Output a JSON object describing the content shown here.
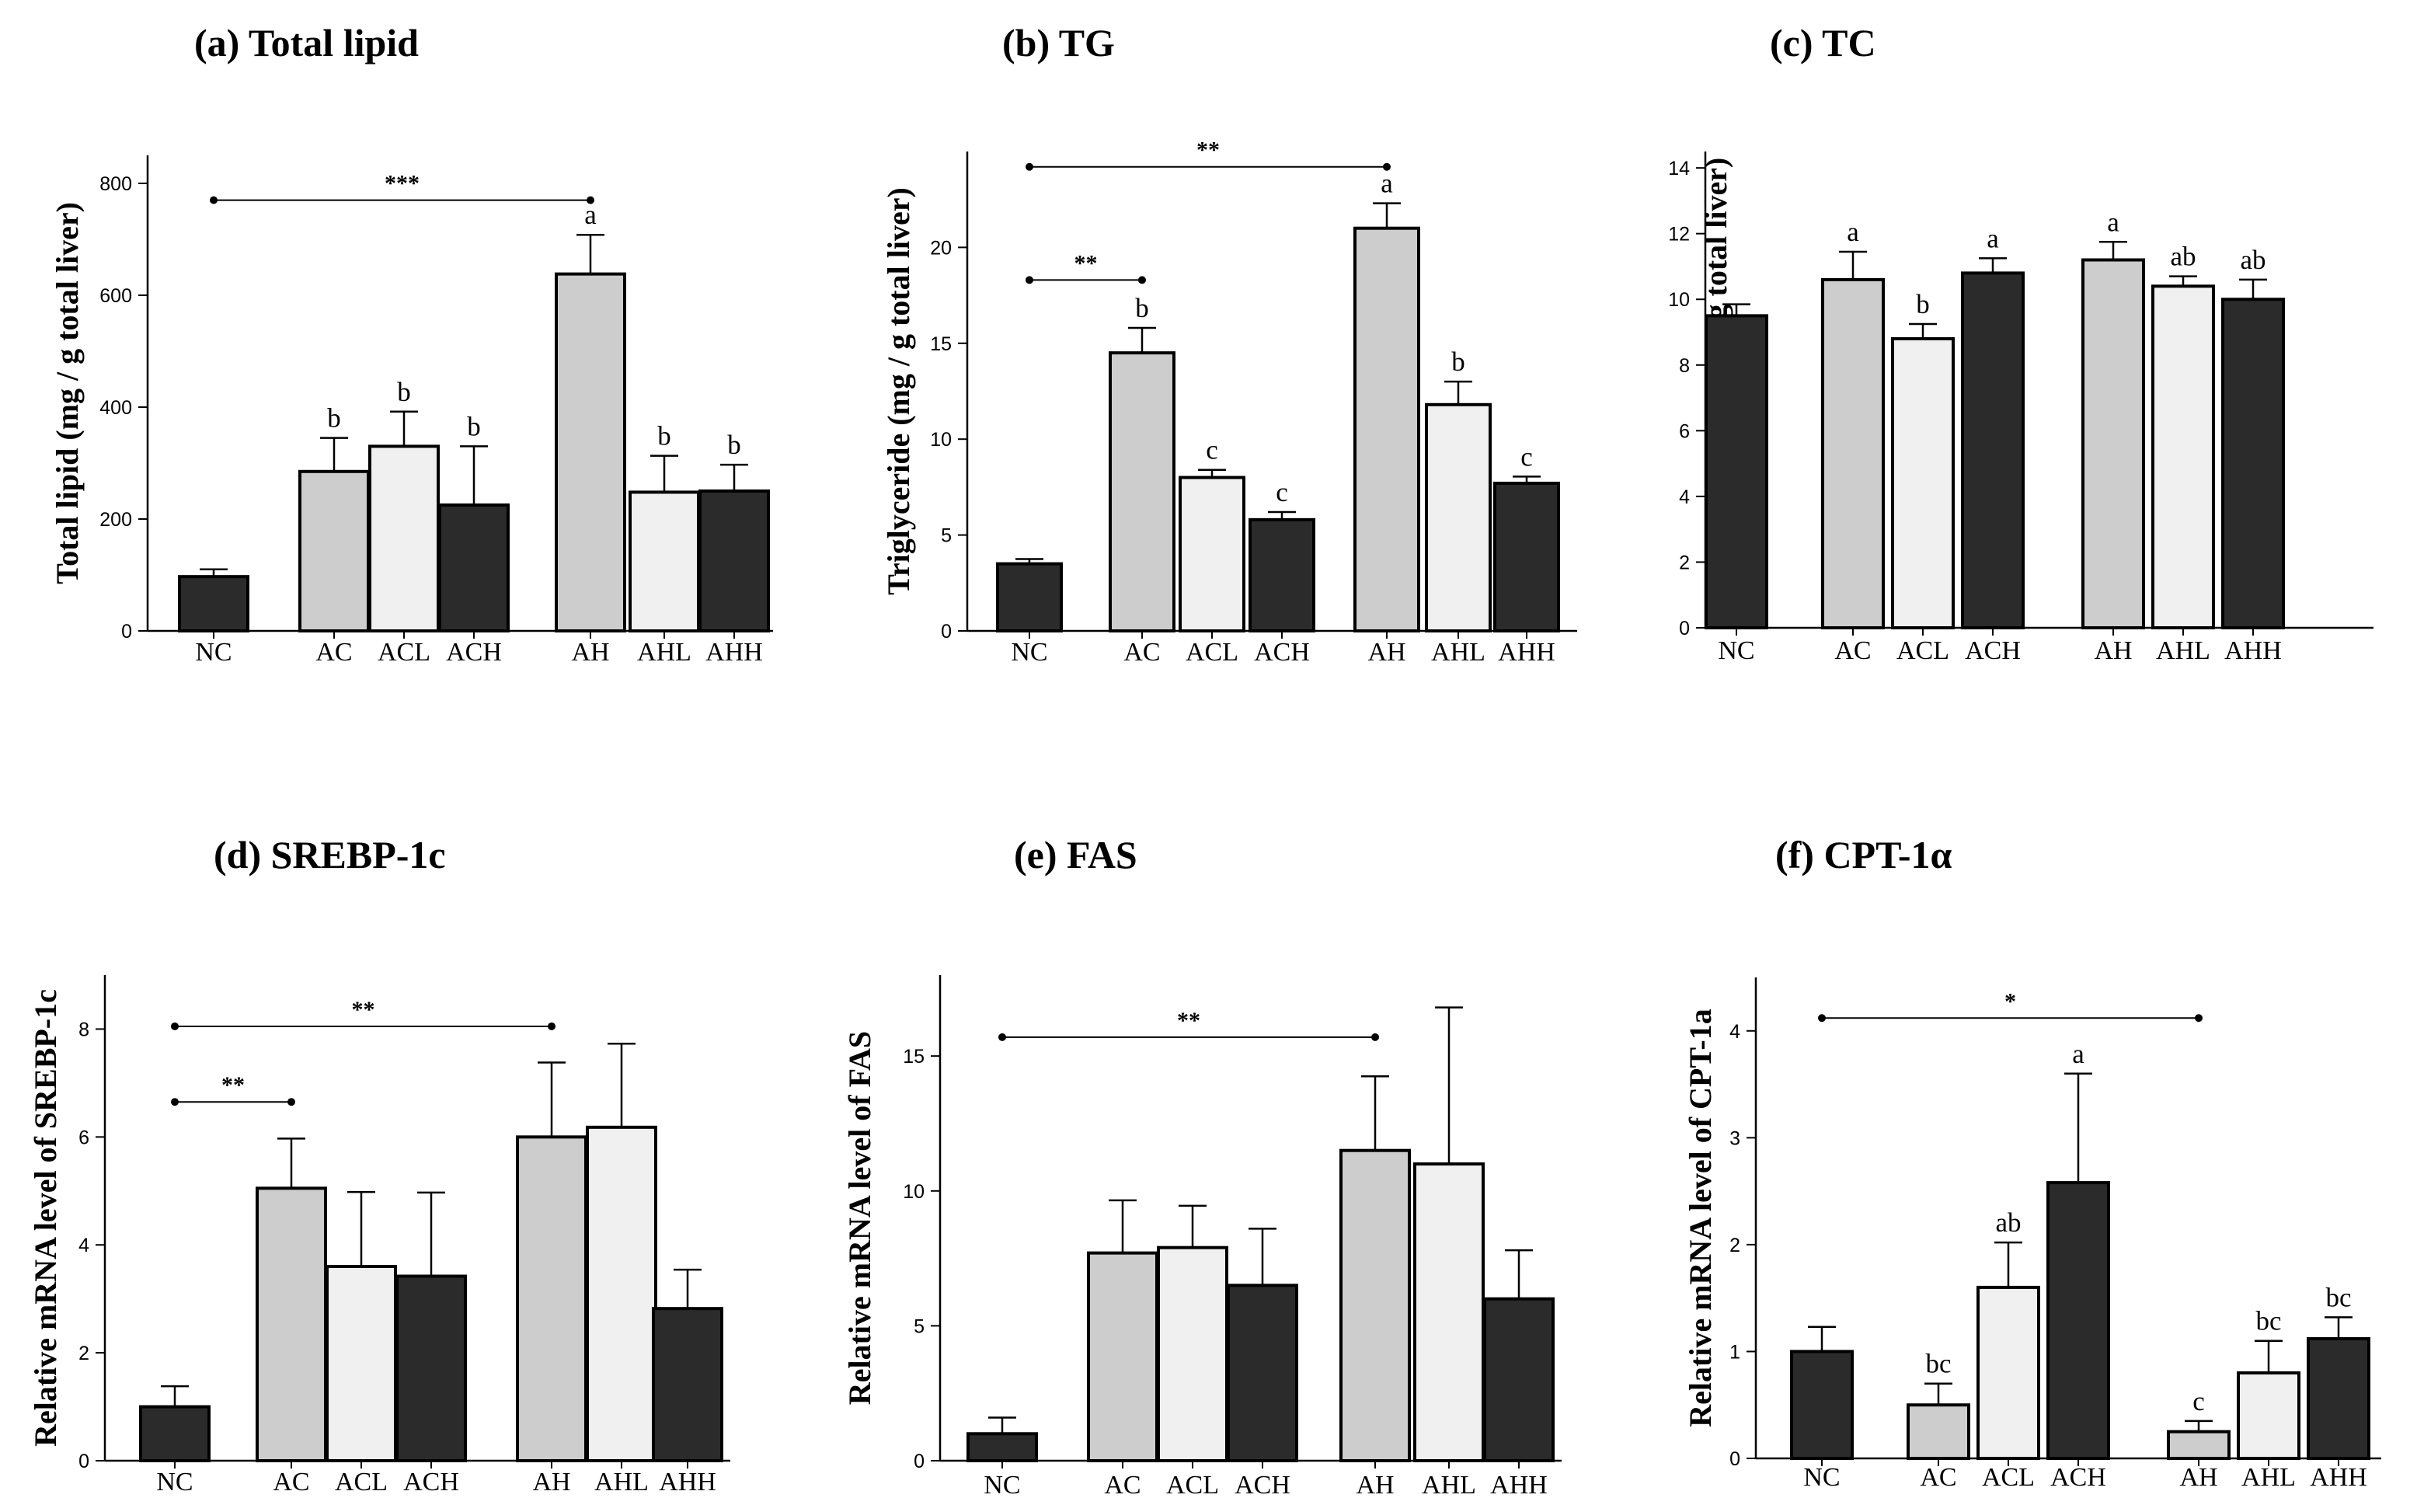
{
  "colors": {
    "dark": "#2b2b2b",
    "mid": "#cdcdcd",
    "light": "#f0f0f0",
    "line": "#000000"
  },
  "chart_data": [
    {
      "type": "bar",
      "title": "(a) Total lipid",
      "ylabel": "Total lipid (mg / g total liver)",
      "ylim": [
        0,
        850
      ],
      "yticks": [
        0,
        200,
        400,
        600,
        800
      ],
      "categories": [
        "NC",
        "AC",
        "ACL",
        "ACH",
        "AH",
        "AHL",
        "AHH"
      ],
      "values": [
        97,
        285,
        330,
        225,
        638,
        248,
        250
      ],
      "errors": [
        13,
        60,
        62,
        105,
        70,
        65,
        47
      ],
      "fills": [
        "dark",
        "mid",
        "light",
        "dark",
        "mid",
        "light",
        "dark"
      ],
      "letters": [
        "",
        "b",
        "b",
        "b",
        "a",
        "b",
        "b"
      ],
      "brackets": [
        {
          "from": 0,
          "to": 4,
          "y": 770,
          "label": "***"
        }
      ]
    },
    {
      "type": "bar",
      "title": "(b) TG",
      "ylabel": "Triglyceride (mg / g total liver)",
      "ylim": [
        0,
        25
      ],
      "yticks": [
        0,
        5,
        10,
        15,
        20
      ],
      "categories": [
        "NC",
        "AC",
        "ACL",
        "ACH",
        "AH",
        "AHL",
        "AHH"
      ],
      "values": [
        3.5,
        14.5,
        8.0,
        5.8,
        21.0,
        11.8,
        7.7
      ],
      "errors": [
        0.25,
        1.3,
        0.4,
        0.4,
        1.3,
        1.2,
        0.35
      ],
      "fills": [
        "dark",
        "mid",
        "light",
        "dark",
        "mid",
        "light",
        "dark"
      ],
      "letters": [
        "",
        "b",
        "c",
        "c",
        "a",
        "b",
        "c"
      ],
      "brackets": [
        {
          "from": 0,
          "to": 4,
          "y": 24.2,
          "label": "**"
        },
        {
          "from": 0,
          "to": 1,
          "y": 18.3,
          "label": "**"
        }
      ]
    },
    {
      "type": "bar",
      "title": "(c) TC",
      "ylabel": "Total cholesterol (mg / g total liver)",
      "ylim": [
        0,
        14.5
      ],
      "yticks": [
        0,
        2,
        4,
        6,
        8,
        10,
        12,
        14
      ],
      "categories": [
        "NC",
        "AC",
        "ACL",
        "ACH",
        "AH",
        "AHL",
        "AHH"
      ],
      "values": [
        9.5,
        10.6,
        8.8,
        10.8,
        11.2,
        10.4,
        10.0
      ],
      "errors": [
        0.35,
        0.85,
        0.45,
        0.45,
        0.55,
        0.3,
        0.6
      ],
      "fills": [
        "dark",
        "mid",
        "light",
        "dark",
        "mid",
        "light",
        "dark"
      ],
      "letters": [
        "",
        "a",
        "b",
        "a",
        "a",
        "ab",
        "ab"
      ],
      "brackets": []
    },
    {
      "type": "bar",
      "title": "(d) SREBP-1c",
      "ylabel": "Relative mRNA level of SREBP-1c",
      "ylim": [
        0,
        9
      ],
      "yticks": [
        0,
        2,
        4,
        6,
        8
      ],
      "categories": [
        "NC",
        "AC",
        "ACL",
        "ACH",
        "AH",
        "AHL",
        "AHH"
      ],
      "values": [
        1.0,
        5.05,
        3.6,
        3.42,
        6.0,
        6.18,
        2.82
      ],
      "errors": [
        0.38,
        0.92,
        1.38,
        1.55,
        1.38,
        1.55,
        0.72
      ],
      "fills": [
        "dark",
        "mid",
        "light",
        "dark",
        "mid",
        "light",
        "dark"
      ],
      "letters": [
        "",
        "",
        "",
        "",
        "",
        "",
        ""
      ],
      "brackets": [
        {
          "from": 0,
          "to": 4,
          "y": 8.05,
          "label": "**"
        },
        {
          "from": 0,
          "to": 1,
          "y": 6.65,
          "label": "**"
        }
      ]
    },
    {
      "type": "bar",
      "title": "(e) FAS",
      "ylabel": "Relative mRNA level of FAS",
      "ylim": [
        0,
        18
      ],
      "yticks": [
        0,
        5,
        10,
        15
      ],
      "categories": [
        "NC",
        "AC",
        "ACL",
        "ACH",
        "AH",
        "AHL",
        "AHH"
      ],
      "values": [
        1.0,
        7.7,
        7.9,
        6.5,
        11.5,
        11.0,
        6.0
      ],
      "errors": [
        0.6,
        1.95,
        1.55,
        2.1,
        2.75,
        5.8,
        1.8
      ],
      "fills": [
        "dark",
        "mid",
        "light",
        "dark",
        "mid",
        "light",
        "dark"
      ],
      "letters": [
        "",
        "",
        "",
        "",
        "",
        "",
        ""
      ],
      "brackets": [
        {
          "from": 0,
          "to": 4,
          "y": 15.7,
          "label": "**"
        }
      ]
    },
    {
      "type": "bar",
      "title": "(f) CPT-1α",
      "ylabel": "Relative mRNA level of CPT-1a",
      "ylim": [
        0,
        4.5
      ],
      "yticks": [
        0,
        1,
        2,
        3,
        4
      ],
      "categories": [
        "NC",
        "AC",
        "ACL",
        "ACH",
        "AH",
        "AHL",
        "AHH"
      ],
      "values": [
        1.0,
        0.5,
        1.6,
        2.58,
        0.25,
        0.8,
        1.12
      ],
      "errors": [
        0.23,
        0.2,
        0.42,
        1.02,
        0.1,
        0.3,
        0.2
      ],
      "fills": [
        "dark",
        "mid",
        "light",
        "dark",
        "mid",
        "light",
        "dark"
      ],
      "letters": [
        "",
        "bc",
        "ab",
        "a",
        "c",
        "bc",
        "bc"
      ],
      "brackets": [
        {
          "from": 0,
          "to": 4,
          "y": 4.12,
          "label": "*"
        }
      ]
    }
  ]
}
